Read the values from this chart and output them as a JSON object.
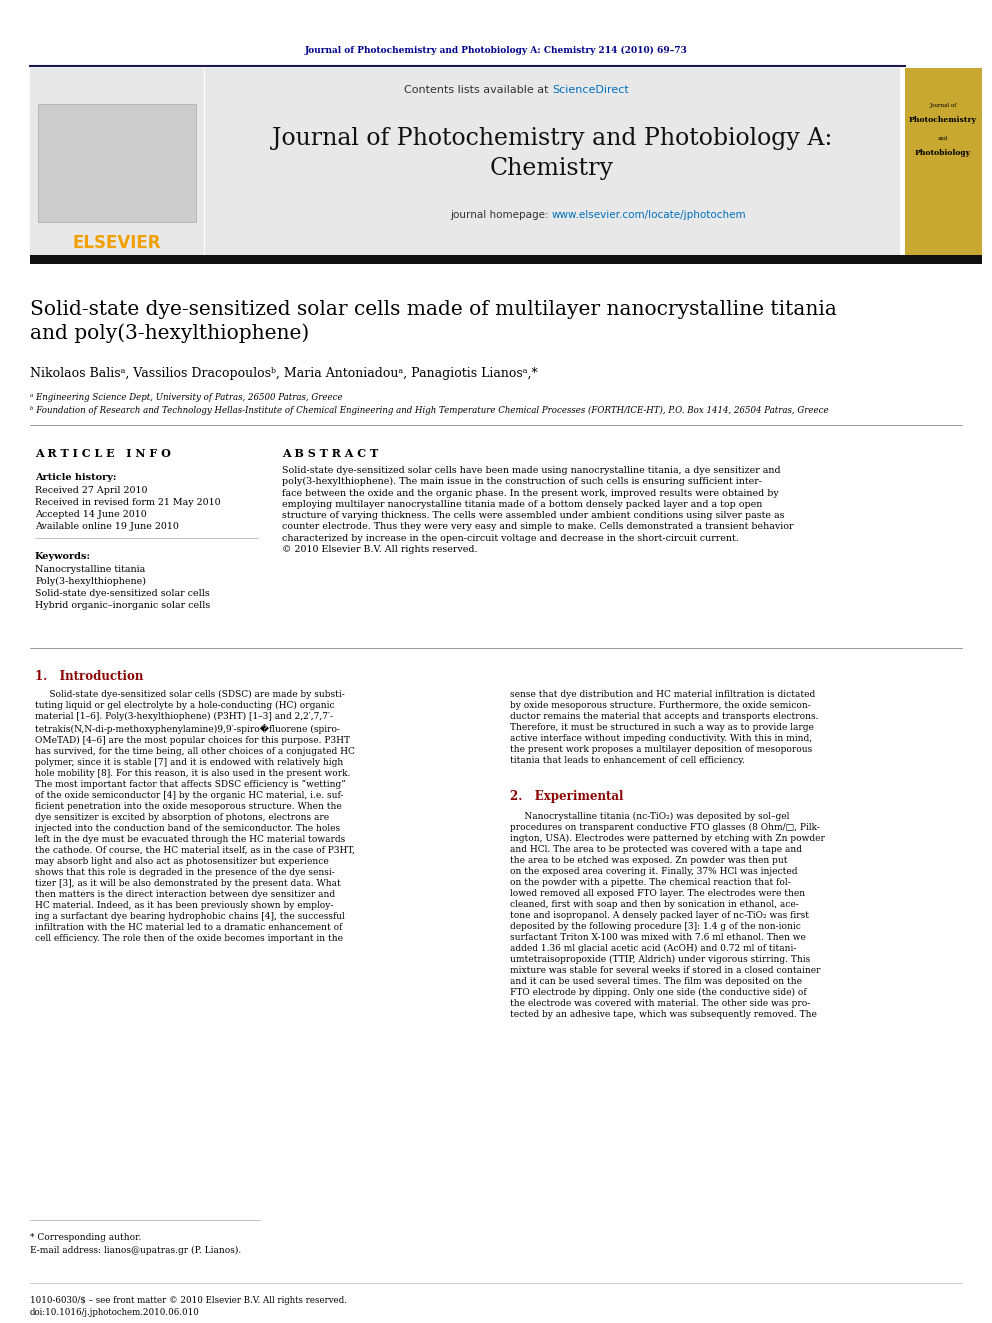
{
  "journal_citation": "Journal of Photochemistry and Photobiology A: Chemistry 214 (2010) 69–73",
  "journal_title_line1": "Journal of Photochemistry and Photobiology A:",
  "journal_title_line2": "Chemistry",
  "contents_text": "Contents lists available at ",
  "science_direct": "ScienceDirect",
  "homepage_text": "journal homepage: ",
  "homepage_url": "www.elsevier.com/locate/jphotochem",
  "elsevier_text": "ELSEVIER",
  "paper_title": "Solid-state dye-sensitized solar cells made of multilayer nanocrystalline titania\nand poly(3-hexylthiophene)",
  "authors": "Nikolaos Balisᵃ, Vassilios Dracopoulosᵇ, Maria Antoniadouᵃ, Panagiotis Lianosᵃ,*",
  "affil_a": "ᵃ Engineering Science Dept, University of Patras, 26500 Patras, Greece",
  "affil_b": "ᵇ Foundation of Research and Technology Hellas-Institute of Chemical Engineering and High Temperature Chemical Processes (FORTH/ICE-HT), P.O. Box 1414, 26504 Patras, Greece",
  "article_info_header": "A R T I C L E   I N F O",
  "abstract_header": "A B S T R A C T",
  "article_history_label": "Article history:",
  "received": "Received 27 April 2010",
  "received_revised": "Received in revised form 21 May 2010",
  "accepted": "Accepted 14 June 2010",
  "available": "Available online 19 June 2010",
  "keywords_label": "Keywords:",
  "keyword1": "Nanocrystalline titania",
  "keyword2": "Poly(3-hexylthiophene)",
  "keyword3": "Solid-state dye-sensitized solar cells",
  "keyword4": "Hybrid organic–inorganic solar cells",
  "abstract_text": "Solid-state dye-sensitized solar cells have been made using nanocrystalline titania, a dye sensitizer and\npoly(3-hexylthiophene). The main issue in the construction of such cells is ensuring sufficient inter-\nface between the oxide and the organic phase. In the present work, improved results were obtained by\nemploying multilayer nanocrystalline titania made of a bottom densely packed layer and a top open\nstructure of varying thickness. The cells were assembled under ambient conditions using silver paste as\ncounter electrode. Thus they were very easy and simple to make. Cells demonstrated a transient behavior\ncharacterized by increase in the open-circuit voltage and decrease in the short-circuit current.\n© 2010 Elsevier B.V. All rights reserved.",
  "intro_header": "1.   Introduction",
  "intro_text1": "     Solid-state dye-sensitized solar cells (SDSC) are made by substi-\ntuting liquid or gel electrolyte by a hole-conducting (HC) organic\nmaterial [1–6]. Poly(3-hexylthiophene) (P3HT) [1–3] and 2,2′,7,7′-\ntetrakis(N,N-di-p-methoxyphenylamine)9,9′-spiro�fluorene (spiro-\nOMeTAD) [4–6] are the most popular choices for this purpose. P3HT\nhas survived, for the time being, all other choices of a conjugated HC\npolymer, since it is stable [7] and it is endowed with relatively high\nhole mobility [8]. For this reason, it is also used in the present work.\nThe most important factor that affects SDSC efficiency is “wetting”\nof the oxide semiconductor [4] by the organic HC material, i.e. suf-\nficient penetration into the oxide mesoporous structure. When the\ndye sensitizer is excited by absorption of photons, electrons are\ninjected into the conduction band of the semiconductor. The holes\nleft in the dye must be evacuated through the HC material towards\nthe cathode. Of course, the HC material itself, as in the case of P3HT,\nmay absorb light and also act as photosensitizer but experience\nshows that this role is degraded in the presence of the dye sensi-\ntizer [3], as it will be also demonstrated by the present data. What\nthen matters is the direct interaction between dye sensitizer and\nHC material. Indeed, as it has been previously shown by employ-\ning a surfactant dye bearing hydrophobic chains [4], the successful\ninfiltration with the HC material led to a dramatic enhancement of\ncell efficiency. The role then of the oxide becomes important in the",
  "intro_text2": "sense that dye distribution and HC material infiltration is dictated\nby oxide mesoporous structure. Furthermore, the oxide semicon-\nductor remains the material that accepts and transports electrons.\nTherefore, it must be structured in such a way as to provide large\nactive interface without impeding conductivity. With this in mind,\nthe present work proposes a multilayer deposition of mesoporous\ntitania that leads to enhancement of cell efficiency.",
  "exp_header": "2.   Experimental",
  "exp_text": "     Nanocrystalline titania (nc-TiO₂) was deposited by sol–gel\nprocedures on transparent conductive FTO glasses (8 Ohm/□, Pilk-\nington, USA). Electrodes were patterned by etching with Zn powder\nand HCl. The area to be protected was covered with a tape and\nthe area to be etched was exposed. Zn powder was then put\non the exposed area covering it. Finally, 37% HCl was injected\non the powder with a pipette. The chemical reaction that fol-\nlowed removed all exposed FTO layer. The electrodes were then\ncleaned, first with soap and then by sonication in ethanol, ace-\ntone and isopropanol. A densely packed layer of nc-TiO₂ was first\ndeposited by the following procedure [3]: 1.4 g of the non-ionic\nsurfactant Triton X-100 was mixed with 7.6 ml ethanol. Then we\nadded 1.36 ml glacial acetic acid (AcOH) and 0.72 ml of titani-\numtetraisopropoxide (TTIP, Aldrich) under vigorous stirring. This\nmixture was stable for several weeks if stored in a closed container\nand it can be used several times. The film was deposited on the\nFTO electrode by dipping. Only one side (the conductive side) of\nthe electrode was covered with material. The other side was pro-\ntected by an adhesive tape, which was subsequently removed. The",
  "footnote_star": "* Corresponding author.",
  "footnote_email": "E-mail address: lianos@upatras.gr (P. Lianos).",
  "footer_issn": "1010-6030/$ – see front matter © 2010 Elsevier B.V. All rights reserved.",
  "footer_doi": "doi:10.1016/j.jphotochem.2010.06.010",
  "header_bg": "#e8e8e8",
  "elsevier_color": "#f0a000",
  "sciencedirect_color": "#0070c0",
  "url_color": "#0070c0",
  "intro_color": "#8b0000",
  "separator_color": "#1a1a4e",
  "black_bar_color": "#111111",
  "citation_color": "#00008B",
  "cover_bg": "#c8a830"
}
